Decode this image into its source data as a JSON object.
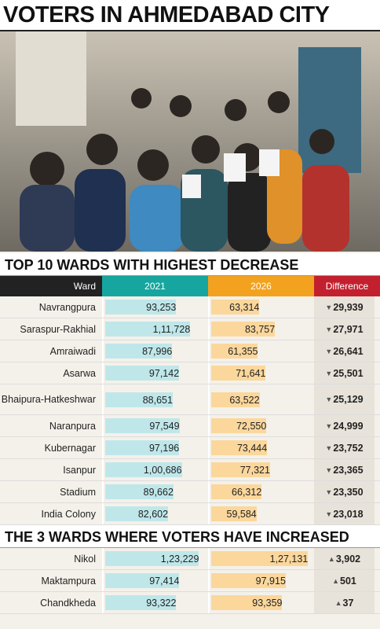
{
  "title": "VOTERS IN AHMEDABAD CITY",
  "xlim": [
    0,
    130000
  ],
  "sections": [
    {
      "heading": "TOP 10 WARDS WITH HIGHEST DECREASE",
      "columns": [
        "Ward",
        "2021",
        "2026",
        "Difference"
      ],
      "marker": "down",
      "rows": [
        {
          "ward": "Navrangpura",
          "values": [
            93253,
            63314,
            29939
          ],
          "value_labels": [
            "93,253",
            "63,314",
            "29,939"
          ]
        },
        {
          "ward": "Saraspur-Rakhial",
          "values": [
            111728,
            83757,
            27971
          ],
          "value_labels": [
            "1,11,728",
            "83,757",
            "27,971"
          ]
        },
        {
          "ward": "Amraiwadi",
          "values": [
            87996,
            61355,
            26641
          ],
          "value_labels": [
            "87,996",
            "61,355",
            "26,641"
          ]
        },
        {
          "ward": "Asarwa",
          "values": [
            97142,
            71641,
            25501
          ],
          "value_labels": [
            "97,142",
            "71,641",
            "25,501"
          ]
        },
        {
          "ward": "Bhaipura-Hatkeshwar",
          "values": [
            88651,
            63522,
            25129
          ],
          "value_labels": [
            "88,651",
            "63,522",
            "25,129"
          ]
        },
        {
          "ward": "Naranpura",
          "values": [
            97549,
            72550,
            24999
          ],
          "value_labels": [
            "97,549",
            "72,550",
            "24,999"
          ]
        },
        {
          "ward": "Kubernagar",
          "values": [
            97196,
            73444,
            23752
          ],
          "value_labels": [
            "97,196",
            "73,444",
            "23,752"
          ]
        },
        {
          "ward": "Isanpur",
          "values": [
            100686,
            77321,
            23365
          ],
          "value_labels": [
            "1,00,686",
            "77,321",
            "23,365"
          ]
        },
        {
          "ward": "Stadium",
          "values": [
            89662,
            66312,
            23350
          ],
          "value_labels": [
            "89,662",
            "66,312",
            "23,350"
          ]
        },
        {
          "ward": "India Colony",
          "values": [
            82602,
            59584,
            23018
          ],
          "value_labels": [
            "82,602",
            "59,584",
            "23,018"
          ]
        }
      ]
    },
    {
      "heading": "THE 3 WARDS WHERE VOTERS HAVE INCREASED",
      "marker": "up",
      "rows": [
        {
          "ward": "Nikol",
          "values": [
            123229,
            127131,
            3902
          ],
          "value_labels": [
            "1,23,229",
            "1,27,131",
            "3,902"
          ]
        },
        {
          "ward": "Maktampura",
          "values": [
            97414,
            97915,
            501
          ],
          "value_labels": [
            "97,414",
            "97,915",
            "501"
          ]
        },
        {
          "ward": "Chandkheda",
          "values": [
            93322,
            93359,
            37
          ],
          "value_labels": [
            "93,322",
            "93,359",
            "37"
          ]
        }
      ]
    }
  ]
}
